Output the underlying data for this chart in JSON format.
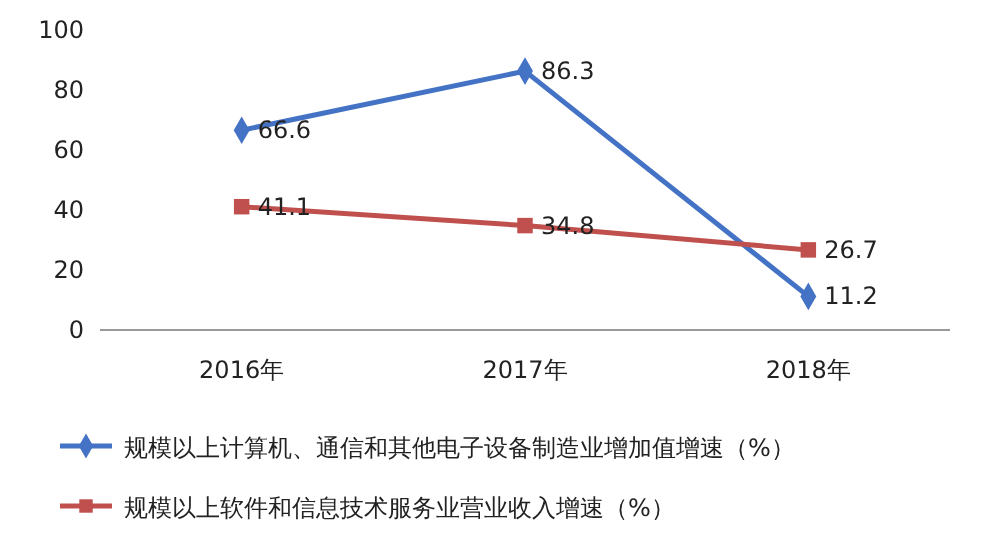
{
  "chart_data": {
    "type": "line",
    "categories": [
      "2016年",
      "2017年",
      "2018年"
    ],
    "series": [
      {
        "name": "规模以上计算机、通信和其他电子设备制造业增加值增速（%）",
        "color": "#4472c4",
        "marker": "diamond",
        "values": [
          66.6,
          86.3,
          11.2
        ]
      },
      {
        "name": "规模以上软件和信息技术服务业营业收入增速（%）",
        "color": "#c0504d",
        "marker": "square",
        "values": [
          41.1,
          34.8,
          26.7
        ]
      }
    ],
    "ylim": [
      0,
      100
    ],
    "yticks": [
      0,
      20,
      40,
      60,
      80,
      100
    ],
    "data_labels": true,
    "legend": "bottom",
    "grid": false
  }
}
